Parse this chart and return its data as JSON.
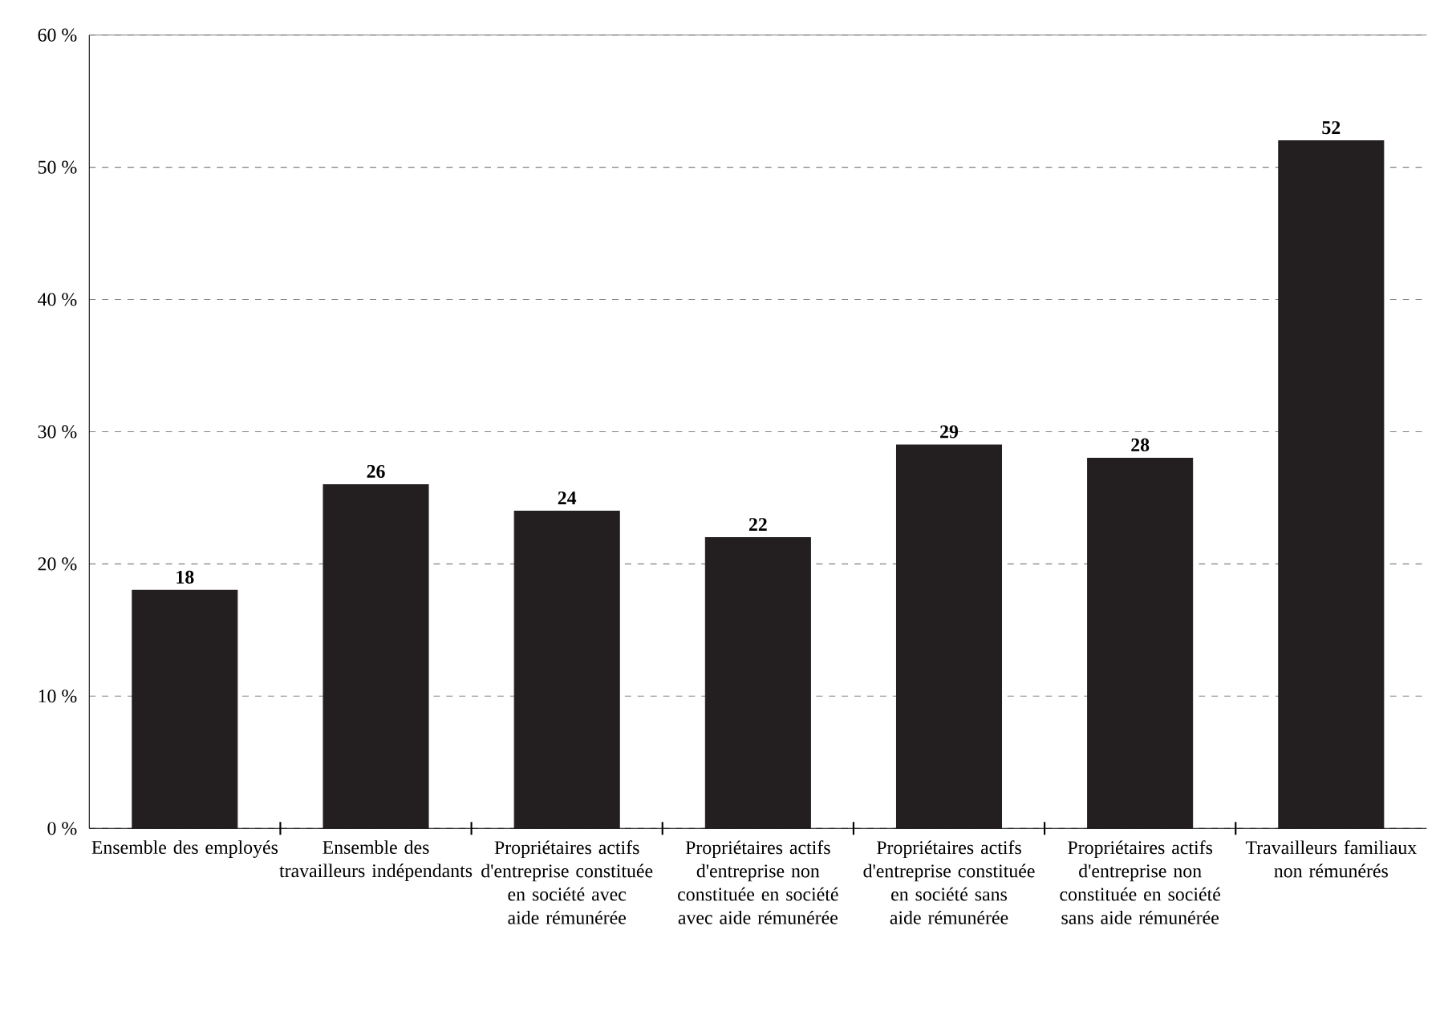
{
  "chart_data": {
    "type": "bar",
    "categories": [
      "Ensemble des employés",
      "Ensemble des travailleurs indépendants",
      "Propriétaires actifs d'entreprise constituée en société avec aide rémunérée",
      "Propriétaires actifs d'entreprise non constituée en société avec aide rémunérée",
      "Propriétaires actifs d'entreprise constituée en société sans aide rémunérée",
      "Propriétaires actifs d'entreprise non constituée en société sans aide rémunérée",
      "Travailleurs familiaux non rémunérés"
    ],
    "values": [
      18,
      26,
      24,
      22,
      29,
      28,
      52
    ],
    "color": "#231f20",
    "ylim": [
      0,
      60
    ],
    "yticks": [
      {
        "value": 0,
        "label": "0 %"
      },
      {
        "value": 10,
        "label": "10 %"
      },
      {
        "value": 20,
        "label": "20 %"
      },
      {
        "value": 30,
        "label": "30 %"
      },
      {
        "value": 40,
        "label": "40 %"
      },
      {
        "value": 50,
        "label": "50 %"
      },
      {
        "value": 60,
        "label": "60 %"
      }
    ],
    "grid": "y",
    "data_labels": true
  }
}
